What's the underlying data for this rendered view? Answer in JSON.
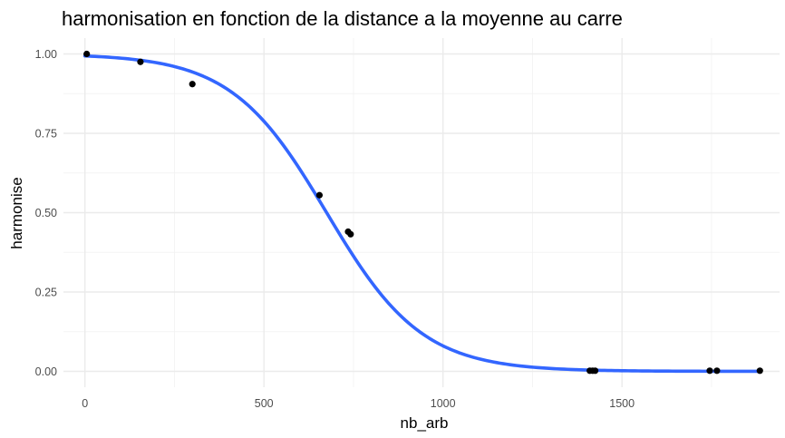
{
  "chart_data": {
    "type": "scatter",
    "title": "harmonisation en fonction de la distance a la moyenne au carre",
    "xlabel": "nb_arb",
    "ylabel": "harmonise",
    "xlim": [
      -60,
      1940
    ],
    "ylim": [
      -0.05,
      1.05
    ],
    "x_ticks": [
      0,
      500,
      1000,
      1500
    ],
    "x_tick_labels": [
      "0",
      "500",
      "1000",
      "1500"
    ],
    "y_ticks": [
      0,
      0.25,
      0.5,
      0.75,
      1
    ],
    "y_tick_labels": [
      "0.00",
      "0.25",
      "0.50",
      "0.75",
      "1.00"
    ],
    "x_minor_ticks": [
      250,
      750,
      1250,
      1750
    ],
    "y_minor_ticks": [
      0.125,
      0.375,
      0.625,
      0.875
    ],
    "grid": true,
    "points": {
      "x": [
        5,
        155,
        300,
        655,
        735,
        742,
        1410,
        1418,
        1425,
        1745,
        1765,
        1885
      ],
      "y": [
        1.0,
        0.975,
        0.905,
        0.555,
        0.44,
        0.432,
        0.002,
        0.002,
        0.002,
        0.002,
        0.002,
        0.002
      ],
      "color": "#000000"
    },
    "fit": {
      "kind": "logistic",
      "x0": 675,
      "k": 0.0075,
      "x_range": [
        0,
        1885
      ],
      "color": "#3366ff"
    }
  }
}
